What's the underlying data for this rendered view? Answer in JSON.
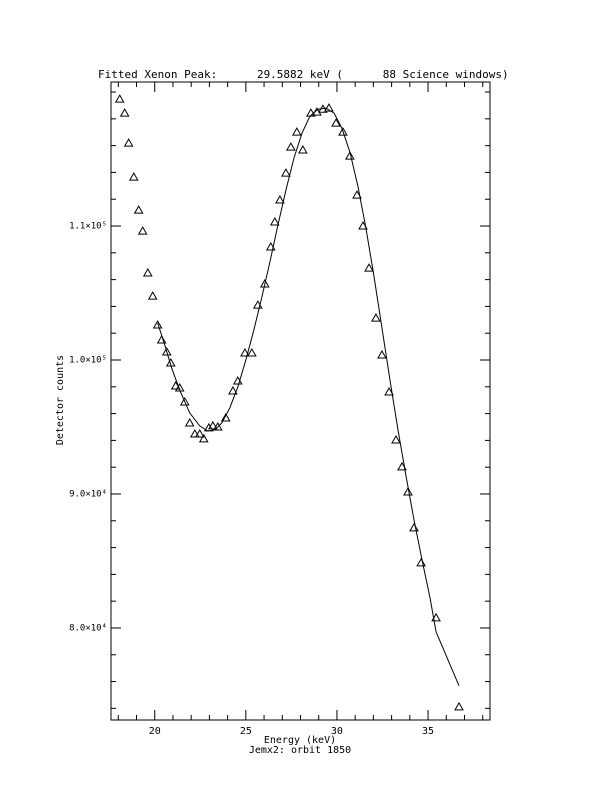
{
  "chart_data": {
    "type": "scatter",
    "title": "Fitted Xenon Peak:      29.5882 keV (      88 Science windows)",
    "xlabel": "Energy (keV)",
    "subtitle": "Jemx2: orbit 1850",
    "ylabel": "Detector counts",
    "xlim": [
      17.6,
      38.4
    ],
    "ylim": [
      73130,
      120750
    ],
    "xticks": [
      20,
      25,
      30,
      35
    ],
    "yticks": [
      {
        "value": 80000,
        "label": "8.0×10⁴"
      },
      {
        "value": 90000,
        "label": "9.0×10⁴"
      },
      {
        "value": 100000,
        "label": "1.0×10⁵"
      },
      {
        "value": 110000,
        "label": "1.1×10⁵"
      }
    ],
    "series": [
      {
        "color": "#000000",
        "marker": "triangle",
        "x": [
          18.08,
          18.35,
          18.57,
          18.85,
          19.12,
          19.34,
          19.62,
          19.89,
          20.16,
          20.38,
          20.66,
          20.88,
          21.15,
          21.37,
          21.65,
          21.92,
          22.2,
          22.47,
          22.69,
          22.97,
          23.19,
          23.46,
          23.9,
          24.29,
          24.56,
          24.95,
          25.33,
          25.66,
          26.04,
          26.37,
          26.59,
          26.87,
          27.2,
          27.47,
          27.8,
          28.13,
          28.57,
          28.9,
          29.23,
          29.56,
          29.95,
          30.33,
          30.71,
          31.1,
          31.43,
          31.76,
          32.14,
          32.47,
          32.86,
          33.24,
          33.57,
          33.9,
          34.23,
          34.62,
          35.44,
          36.7
        ],
        "values": [
          119470,
          118430,
          116190,
          113650,
          111190,
          109620,
          106490,
          104770,
          102610,
          101490,
          100600,
          99780,
          98060,
          97910,
          96870,
          95300,
          94480,
          94480,
          94110,
          94930,
          95080,
          95000,
          95670,
          97690,
          98430,
          100520,
          100520,
          104100,
          105670,
          108430,
          110300,
          111940,
          113950,
          115890,
          117010,
          115670,
          118430,
          118500,
          118720,
          118800,
          117680,
          117010,
          115220,
          112310,
          110000,
          106860,
          103130,
          100370,
          97610,
          94030,
          92020,
          90150,
          87470,
          84860,
          80750,
          74110
        ]
      },
      {
        "color": "#000000",
        "marker": "line",
        "x": [
          20.16,
          20.55,
          20.93,
          21.37,
          21.92,
          22.47,
          22.91,
          23.3,
          23.68,
          24.12,
          24.56,
          25.0,
          25.44,
          25.88,
          26.32,
          26.76,
          27.2,
          27.64,
          28.08,
          28.52,
          28.96,
          29.4,
          29.84,
          30.27,
          30.71,
          31.15,
          31.59,
          32.03,
          32.47,
          32.91,
          33.35,
          33.79,
          34.23,
          34.67,
          35.11,
          35.44,
          36.7
        ],
        "values": [
          102760,
          101120,
          99400,
          97760,
          96050,
          95080,
          94700,
          94780,
          95300,
          96420,
          97990,
          100000,
          102240,
          104700,
          107310,
          110070,
          112680,
          115070,
          116930,
          118200,
          118720,
          118800,
          118430,
          117310,
          115520,
          112980,
          109850,
          106270,
          102390,
          98510,
          94780,
          91350,
          88060,
          85080,
          82240,
          79710,
          75680
        ]
      }
    ]
  }
}
